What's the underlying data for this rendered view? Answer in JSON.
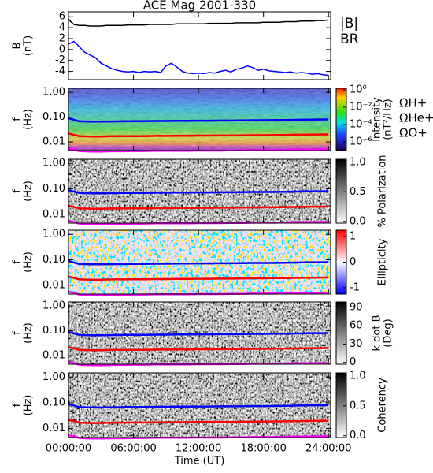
{
  "chart_data": [
    {
      "type": "line",
      "title": "ACE Mag 2001-330",
      "ylabel": [
        "B",
        "(nT)"
      ],
      "ylim": [
        -5.5,
        6.9
      ],
      "yticks": [
        6,
        4,
        2,
        0,
        -2,
        -4
      ],
      "x": [
        0,
        0.5,
        1,
        1.5,
        2,
        2.5,
        3,
        3.5,
        4,
        4.5,
        5,
        5.5,
        6,
        6.5,
        7,
        7.5,
        8,
        8.5,
        9,
        9.5,
        10,
        10.5,
        11,
        11.5,
        12,
        12.5,
        13,
        13.5,
        14,
        14.5,
        15,
        15.5,
        16,
        16.5,
        17,
        17.5,
        18,
        18.5,
        19,
        19.5,
        20,
        20.5,
        21,
        21.5,
        22,
        22.5,
        23,
        23.5,
        24
      ],
      "series": [
        {
          "name": "|B|",
          "color": "#000000",
          "values": [
            5.5,
            4.6,
            4.4,
            4.4,
            4.3,
            4.3,
            4.3,
            4.4,
            4.4,
            4.4,
            4.4,
            4.5,
            4.5,
            4.5,
            4.5,
            4.6,
            4.6,
            4.6,
            4.6,
            4.6,
            4.7,
            4.7,
            4.7,
            4.7,
            4.7,
            4.7,
            4.8,
            4.8,
            4.8,
            4.8,
            4.8,
            4.9,
            4.9,
            4.9,
            4.9,
            4.9,
            5.0,
            5.0,
            5.0,
            5.0,
            5.1,
            5.1,
            5.1,
            5.2,
            5.2,
            5.2,
            5.3,
            5.3,
            5.4
          ]
        },
        {
          "name": "BR",
          "color": "#0000ff",
          "values": [
            1.0,
            1.5,
            0.5,
            -0.5,
            -1.0,
            -1.5,
            -2.5,
            -3.0,
            -3.5,
            -3.8,
            -4.0,
            -4.1,
            -4.0,
            -4.2,
            -4.0,
            -4.1,
            -4.0,
            -4.2,
            -3.0,
            -2.5,
            -3.2,
            -4.0,
            -4.3,
            -4.4,
            -4.3,
            -4.4,
            -4.2,
            -4.3,
            -4.0,
            -3.8,
            -4.1,
            -3.6,
            -3.4,
            -3.0,
            -3.3,
            -3.8,
            -3.6,
            -3.9,
            -4.0,
            -4.1,
            -4.2,
            -4.1,
            -4.3,
            -4.2,
            -4.3,
            -4.5,
            -4.4,
            -4.6,
            -4.7
          ]
        }
      ]
    },
    {
      "type": "spectrogram",
      "ylabel": [
        "f",
        "(Hz)"
      ],
      "ylog": true,
      "ylim": [
        0.0045,
        1.45
      ],
      "yticks": [
        {
          "value": 1,
          "label": "1.00"
        },
        {
          "value": 0.1,
          "label": "0.10"
        },
        {
          "value": 0.01,
          "label": "0.01"
        }
      ],
      "x": [
        0,
        1,
        2,
        3,
        4,
        5,
        6,
        7,
        8,
        9,
        10,
        11,
        12,
        13,
        14,
        15,
        16,
        17,
        18,
        19,
        20,
        21,
        22,
        23,
        24
      ],
      "series": [
        {
          "name": "ΩH+",
          "color": "#0000ff",
          "values": [
            0.09,
            0.068,
            0.066,
            0.066,
            0.067,
            0.068,
            0.069,
            0.069,
            0.07,
            0.07,
            0.071,
            0.071,
            0.072,
            0.072,
            0.073,
            0.073,
            0.074,
            0.075,
            0.075,
            0.076,
            0.077,
            0.078,
            0.079,
            0.08,
            0.081
          ]
        },
        {
          "name": "ΩHe+",
          "color": "#ff0000",
          "values": [
            0.022,
            0.017,
            0.0165,
            0.0165,
            0.017,
            0.017,
            0.0172,
            0.0172,
            0.0175,
            0.0175,
            0.0178,
            0.0178,
            0.018,
            0.018,
            0.0182,
            0.0182,
            0.0185,
            0.0187,
            0.0187,
            0.019,
            0.0192,
            0.0195,
            0.0197,
            0.02,
            0.0202
          ]
        },
        {
          "name": "ΩO+",
          "color": "#ff00ff",
          "values": [
            0.0056,
            0.0043,
            0.0041,
            0.0041,
            0.0042,
            0.0042,
            0.0043,
            0.0043,
            0.0044,
            0.0044,
            0.0044,
            0.0044,
            0.0045,
            0.0045,
            0.0045,
            0.0046,
            0.0046,
            0.0047,
            0.0047,
            0.0047,
            0.0048,
            0.0049,
            0.0049,
            0.005,
            0.005
          ]
        }
      ],
      "colorbar": {
        "label": [
          "Intensity",
          "(nT²/Hz)"
        ],
        "colormap": "rainbow",
        "zlog": true,
        "zlim": [
          1e-07,
          1.5
        ],
        "zticks": [
          {
            "value": 1,
            "label": "10⁰"
          },
          {
            "value": 0.01,
            "label": "10⁻²"
          },
          {
            "value": 0.0001,
            "label": "10⁻⁴"
          },
          {
            "value": 1e-06,
            "label": "10⁻⁶"
          }
        ]
      }
    },
    {
      "type": "spectrogram",
      "ylabel": [
        "f",
        "(Hz)"
      ],
      "ylog": true,
      "ylim": [
        0.0045,
        1.45
      ],
      "yticks": [
        {
          "value": 1,
          "label": "1.00"
        },
        {
          "value": 0.1,
          "label": "0.10"
        },
        {
          "value": 0.01,
          "label": "0.01"
        }
      ],
      "x": [
        0,
        1,
        2,
        3,
        4,
        5,
        6,
        7,
        8,
        9,
        10,
        11,
        12,
        13,
        14,
        15,
        16,
        17,
        18,
        19,
        20,
        21,
        22,
        23,
        24
      ],
      "series": [
        {
          "color": "#0000ff",
          "values": [
            0.09,
            0.068,
            0.066,
            0.066,
            0.067,
            0.068,
            0.069,
            0.069,
            0.07,
            0.07,
            0.071,
            0.071,
            0.072,
            0.072,
            0.073,
            0.073,
            0.074,
            0.075,
            0.075,
            0.076,
            0.077,
            0.078,
            0.079,
            0.08,
            0.081
          ]
        },
        {
          "color": "#ff0000",
          "values": [
            0.022,
            0.017,
            0.0165,
            0.0165,
            0.017,
            0.017,
            0.0172,
            0.0172,
            0.0175,
            0.0175,
            0.0178,
            0.0178,
            0.018,
            0.018,
            0.0182,
            0.0182,
            0.0185,
            0.0187,
            0.0187,
            0.019,
            0.0192,
            0.0195,
            0.0197,
            0.02,
            0.0202
          ]
        },
        {
          "color": "#ff00ff",
          "values": [
            0.0056,
            0.0043,
            0.0041,
            0.0041,
            0.0042,
            0.0042,
            0.0043,
            0.0043,
            0.0044,
            0.0044,
            0.0044,
            0.0044,
            0.0045,
            0.0045,
            0.0045,
            0.0046,
            0.0046,
            0.0047,
            0.0047,
            0.0047,
            0.0048,
            0.0049,
            0.0049,
            0.005,
            0.005
          ]
        }
      ],
      "colorbar": {
        "label": [
          "% Polarization"
        ],
        "colormap": "gray",
        "zlim": [
          -0.03,
          1.05
        ],
        "zticks": [
          {
            "value": 1,
            "label": "1.0"
          },
          {
            "value": 0.5,
            "label": "0.5"
          },
          {
            "value": 0,
            "label": "0.0"
          }
        ]
      }
    },
    {
      "type": "spectrogram",
      "ylabel": [
        "f",
        "(Hz)"
      ],
      "ylog": true,
      "ylim": [
        0.0045,
        1.45
      ],
      "yticks": [
        {
          "value": 1,
          "label": "1.00"
        },
        {
          "value": 0.1,
          "label": "0.10"
        },
        {
          "value": 0.01,
          "label": "0.01"
        }
      ],
      "x": [
        0,
        1,
        2,
        3,
        4,
        5,
        6,
        7,
        8,
        9,
        10,
        11,
        12,
        13,
        14,
        15,
        16,
        17,
        18,
        19,
        20,
        21,
        22,
        23,
        24
      ],
      "series": [
        {
          "color": "#0000ff",
          "values": [
            0.09,
            0.068,
            0.066,
            0.066,
            0.067,
            0.068,
            0.069,
            0.069,
            0.07,
            0.07,
            0.071,
            0.071,
            0.072,
            0.072,
            0.073,
            0.073,
            0.074,
            0.075,
            0.075,
            0.076,
            0.077,
            0.078,
            0.079,
            0.08,
            0.081
          ]
        },
        {
          "color": "#ff0000",
          "values": [
            0.022,
            0.017,
            0.0165,
            0.0165,
            0.017,
            0.017,
            0.0172,
            0.0172,
            0.0175,
            0.0175,
            0.0178,
            0.0178,
            0.018,
            0.018,
            0.0182,
            0.0182,
            0.0185,
            0.0187,
            0.0187,
            0.019,
            0.0192,
            0.0195,
            0.0197,
            0.02,
            0.0202
          ]
        },
        {
          "color": "#ff00ff",
          "values": [
            0.0056,
            0.0043,
            0.0041,
            0.0041,
            0.0042,
            0.0042,
            0.0043,
            0.0043,
            0.0044,
            0.0044,
            0.0044,
            0.0044,
            0.0045,
            0.0045,
            0.0045,
            0.0046,
            0.0046,
            0.0047,
            0.0047,
            0.0047,
            0.0048,
            0.0049,
            0.0049,
            0.005,
            0.005
          ]
        }
      ],
      "colorbar": {
        "label": [
          "Ellipticity"
        ],
        "colormap": "bwr",
        "zlim": [
          -1.25,
          1.25
        ],
        "zticks": [
          1,
          0,
          -1
        ]
      }
    },
    {
      "type": "spectrogram",
      "ylabel": [
        "f",
        "(Hz)"
      ],
      "ylog": true,
      "ylim": [
        0.0045,
        1.45
      ],
      "yticks": [
        {
          "value": 1,
          "label": "1.00"
        },
        {
          "value": 0.1,
          "label": "0.10"
        },
        {
          "value": 0.01,
          "label": "0.01"
        }
      ],
      "x": [
        0,
        1,
        2,
        3,
        4,
        5,
        6,
        7,
        8,
        9,
        10,
        11,
        12,
        13,
        14,
        15,
        16,
        17,
        18,
        19,
        20,
        21,
        22,
        23,
        24
      ],
      "series": [
        {
          "color": "#0000ff",
          "values": [
            0.09,
            0.068,
            0.066,
            0.066,
            0.067,
            0.068,
            0.069,
            0.069,
            0.07,
            0.07,
            0.071,
            0.071,
            0.072,
            0.072,
            0.073,
            0.073,
            0.074,
            0.075,
            0.075,
            0.076,
            0.077,
            0.078,
            0.079,
            0.08,
            0.081
          ]
        },
        {
          "color": "#ff0000",
          "values": [
            0.022,
            0.017,
            0.0165,
            0.0165,
            0.017,
            0.017,
            0.0172,
            0.0172,
            0.0175,
            0.0175,
            0.0178,
            0.0178,
            0.018,
            0.018,
            0.0182,
            0.0182,
            0.0185,
            0.0187,
            0.0187,
            0.019,
            0.0192,
            0.0195,
            0.0197,
            0.02,
            0.0202
          ]
        },
        {
          "color": "#ff00ff",
          "values": [
            0.0056,
            0.0043,
            0.0041,
            0.0041,
            0.0042,
            0.0042,
            0.0043,
            0.0043,
            0.0044,
            0.0044,
            0.0044,
            0.0044,
            0.0045,
            0.0045,
            0.0045,
            0.0046,
            0.0046,
            0.0047,
            0.0047,
            0.0047,
            0.0048,
            0.0049,
            0.0049,
            0.005,
            0.005
          ]
        }
      ],
      "colorbar": {
        "label": [
          "k dot B",
          "(Deg)"
        ],
        "colormap": "gray",
        "zlim": [
          -3,
          99
        ],
        "zticks": [
          90,
          60,
          30,
          0
        ]
      }
    },
    {
      "type": "spectrogram",
      "ylabel": [
        "f",
        "(Hz)"
      ],
      "ylog": true,
      "ylim": [
        0.0045,
        1.45
      ],
      "yticks": [
        {
          "value": 1,
          "label": "1.00"
        },
        {
          "value": 0.1,
          "label": "0.10"
        },
        {
          "value": 0.01,
          "label": "0.01"
        }
      ],
      "x": [
        0,
        1,
        2,
        3,
        4,
        5,
        6,
        7,
        8,
        9,
        10,
        11,
        12,
        13,
        14,
        15,
        16,
        17,
        18,
        19,
        20,
        21,
        22,
        23,
        24
      ],
      "series": [
        {
          "color": "#0000ff",
          "values": [
            0.09,
            0.068,
            0.066,
            0.066,
            0.067,
            0.068,
            0.069,
            0.069,
            0.07,
            0.07,
            0.071,
            0.071,
            0.072,
            0.072,
            0.073,
            0.073,
            0.074,
            0.075,
            0.075,
            0.076,
            0.077,
            0.078,
            0.079,
            0.08,
            0.081
          ]
        },
        {
          "color": "#ff0000",
          "values": [
            0.022,
            0.017,
            0.0165,
            0.0165,
            0.017,
            0.017,
            0.0172,
            0.0172,
            0.0175,
            0.0175,
            0.0178,
            0.0178,
            0.018,
            0.018,
            0.0182,
            0.0182,
            0.0185,
            0.0187,
            0.0187,
            0.019,
            0.0192,
            0.0195,
            0.0197,
            0.02,
            0.0202
          ]
        },
        {
          "color": "#ff00ff",
          "values": [
            0.0056,
            0.0043,
            0.0041,
            0.0041,
            0.0042,
            0.0042,
            0.0043,
            0.0043,
            0.0044,
            0.0044,
            0.0044,
            0.0044,
            0.0045,
            0.0045,
            0.0045,
            0.0046,
            0.0046,
            0.0047,
            0.0047,
            0.0047,
            0.0048,
            0.0049,
            0.0049,
            0.005,
            0.005
          ]
        }
      ],
      "colorbar": {
        "label": [
          "Coherency"
        ],
        "colormap": "gray",
        "zlim": [
          -0.03,
          1.05
        ],
        "zticks": [
          {
            "value": 1,
            "label": "1.0"
          },
          {
            "value": 0.5,
            "label": "0.5"
          },
          {
            "value": 0,
            "label": "0.0"
          }
        ]
      },
      "xlim": [
        0,
        24.2
      ],
      "xlabel": "Time (UT)",
      "xticks": [
        {
          "value": 0,
          "label": "00:00:00"
        },
        {
          "value": 6,
          "label": "06:00:00"
        },
        {
          "value": 12,
          "label": "12:00:00"
        },
        {
          "value": 18,
          "label": "18:00:00"
        },
        {
          "value": 24,
          "label": "24:00:00"
        }
      ]
    }
  ]
}
